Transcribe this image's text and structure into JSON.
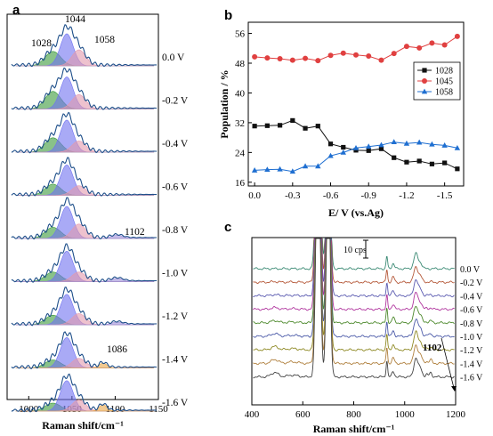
{
  "chart_data": [
    {
      "panel": "a",
      "type": "area",
      "xlabel": "Raman shift/cm⁻¹",
      "ylabel": "",
      "xlim": [
        975,
        1150
      ],
      "xticks": [
        "1000",
        "1050",
        "1100",
        "1150"
      ],
      "components": [
        {
          "center": 1028,
          "color": "#3a9a3a"
        },
        {
          "center": 1044,
          "color": "#6f72f0"
        },
        {
          "center": 1058,
          "color": "#e39aae"
        },
        {
          "center": 1086,
          "color": "#e8a74a"
        },
        {
          "center": 1102,
          "color": "#9f8fd8"
        }
      ],
      "peak_labels": [
        {
          "text": "1028",
          "trace": 0
        },
        {
          "text": "1044",
          "trace": 0
        },
        {
          "text": "1058",
          "trace": 0
        },
        {
          "text": "1102",
          "trace": 4
        },
        {
          "text": "1086",
          "trace": 7
        }
      ],
      "traces": [
        {
          "label": "0.0 V",
          "amps": [
            0.45,
            1.0,
            0.5,
            0,
            0
          ]
        },
        {
          "label": "-0.2 V",
          "amps": [
            0.55,
            1.0,
            0.45,
            0,
            0
          ]
        },
        {
          "label": "-0.4 V",
          "amps": [
            0.45,
            1.0,
            0.35,
            0,
            0
          ]
        },
        {
          "label": "-0.6 V",
          "amps": [
            0.35,
            0.95,
            0.3,
            0,
            0
          ]
        },
        {
          "label": "-0.8 V",
          "amps": [
            0.35,
            1.0,
            0.45,
            0,
            0.1
          ]
        },
        {
          "label": "-1.0 V",
          "amps": [
            0.3,
            0.95,
            0.3,
            0,
            0.1
          ]
        },
        {
          "label": "-1.2 V",
          "amps": [
            0.3,
            0.95,
            0.35,
            0,
            0.08
          ]
        },
        {
          "label": "-1.4 V",
          "amps": [
            0.25,
            0.95,
            0.3,
            0.15,
            0
          ]
        },
        {
          "label": "-1.6 V",
          "amps": [
            0.25,
            0.95,
            0.35,
            0.2,
            0
          ]
        }
      ]
    },
    {
      "panel": "b",
      "type": "line",
      "xlabel": "E/ V (vs.Ag)",
      "ylabel": "Population / %",
      "xlim": [
        0.05,
        -1.65
      ],
      "ylim": [
        15,
        59
      ],
      "xticks": [
        0.0,
        -0.3,
        -0.6,
        -0.9,
        -1.2,
        -1.5
      ],
      "xtick_labels": [
        "0.0",
        "-0.3",
        "-0.6",
        "-0.9",
        "-1.2",
        "-1.5"
      ],
      "yticks": [
        16,
        24,
        32,
        40,
        48,
        56
      ],
      "x": [
        0.0,
        -0.1,
        -0.2,
        -0.3,
        -0.4,
        -0.5,
        -0.6,
        -0.7,
        -0.8,
        -0.9,
        -1.0,
        -1.1,
        -1.2,
        -1.3,
        -1.4,
        -1.5,
        -1.6
      ],
      "series": [
        {
          "name": "1028",
          "color": "#111111",
          "marker": "square",
          "values": [
            31.1,
            31.2,
            31.3,
            32.6,
            30.5,
            31.1,
            26.3,
            25.4,
            24.6,
            24.5,
            25.0,
            22.6,
            21.4,
            21.7,
            20.9,
            21.2,
            19.6
          ]
        },
        {
          "name": "1045",
          "color": "#e04040",
          "marker": "circle",
          "values": [
            49.7,
            49.4,
            49.2,
            48.8,
            49.3,
            48.7,
            50.1,
            50.7,
            50.2,
            49.9,
            48.8,
            50.6,
            52.5,
            52.1,
            53.4,
            52.9,
            55.2
          ]
        },
        {
          "name": "1058",
          "color": "#1f6fd1",
          "marker": "triangle",
          "values": [
            19.2,
            19.4,
            19.5,
            18.9,
            20.3,
            20.3,
            23.1,
            24.0,
            25.2,
            25.6,
            26.0,
            26.8,
            26.4,
            26.7,
            26.2,
            25.9,
            25.2
          ]
        }
      ]
    },
    {
      "panel": "c",
      "type": "line",
      "xlabel": "Raman shift/cm⁻¹",
      "ylabel": "",
      "xlim": [
        400,
        1200
      ],
      "xticks": [
        400,
        600,
        800,
        1000,
        1200
      ],
      "xtick_labels": [
        "400",
        "600",
        "800",
        "1000",
        "1200"
      ],
      "scale_bar": "10 cps",
      "peak_label": "1102",
      "traces": [
        {
          "label": "0.0 V",
          "color": "#3b8a74"
        },
        {
          "label": "-0.2 V",
          "color": "#b5593a"
        },
        {
          "label": "-0.4 V",
          "color": "#5a5ab0"
        },
        {
          "label": "-0.6 V",
          "color": "#b0359e"
        },
        {
          "label": "-0.8 V",
          "color": "#4e8a2e"
        },
        {
          "label": "-1.0 V",
          "color": "#4b5aa8"
        },
        {
          "label": "-1.2 V",
          "color": "#8f8a25"
        },
        {
          "label": "-1.4 V",
          "color": "#b0803e"
        },
        {
          "label": "-1.6 V",
          "color": "#444444"
        }
      ]
    }
  ]
}
